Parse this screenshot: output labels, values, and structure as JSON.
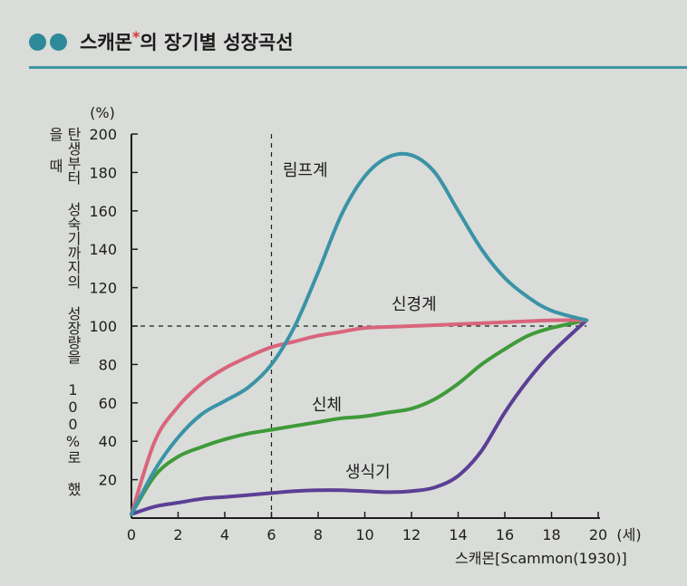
{
  "header": {
    "title": "스캐몬",
    "title_mark": "*",
    "title_rest": "의 장기별 성장곡선"
  },
  "colors": {
    "accent": "#2e8a9a",
    "lymph": "#3a93a6",
    "nerve": "#d9657c",
    "body": "#3f9a3a",
    "repro": "#5b3f95"
  },
  "source": "스캐몬[Scammon(1930)]",
  "chart_data": {
    "type": "line",
    "y_unit": "(%)",
    "ylabel": "탄생부터 성숙기까지의 성장량을 100%로 했을 때",
    "x_unit": "(세)",
    "xlim": [
      0,
      20
    ],
    "ylim": [
      0,
      200
    ],
    "x_ticks": [
      0,
      2,
      4,
      6,
      8,
      10,
      12,
      14,
      16,
      18,
      20
    ],
    "y_ticks": [
      20,
      40,
      60,
      80,
      100,
      120,
      140,
      160,
      180,
      200
    ],
    "reference_lines": {
      "x": 6,
      "y": 100
    },
    "series": [
      {
        "name": "림프계",
        "x": [
          0,
          1,
          2,
          3,
          4,
          5,
          6,
          7,
          8,
          9,
          10,
          11,
          12,
          13,
          14,
          15,
          16,
          17,
          18,
          19.5
        ],
        "values": [
          2,
          25,
          42,
          54,
          61,
          68,
          80,
          100,
          128,
          158,
          178,
          188,
          189,
          180,
          160,
          140,
          125,
          115,
          108,
          103
        ]
      },
      {
        "name": "신경계",
        "x": [
          0,
          1,
          2,
          3,
          4,
          5,
          6,
          7,
          8,
          9,
          10,
          12,
          14,
          16,
          18,
          19.5
        ],
        "values": [
          2,
          40,
          58,
          70,
          78,
          84,
          89,
          92,
          95,
          97,
          99,
          100,
          101,
          102,
          103,
          103
        ]
      },
      {
        "name": "신체",
        "x": [
          0,
          1,
          2,
          3,
          4,
          5,
          6,
          7,
          8,
          9,
          10,
          11,
          12,
          13,
          14,
          15,
          16,
          17,
          18,
          19.5
        ],
        "values": [
          2,
          22,
          32,
          37,
          41,
          44,
          46,
          48,
          50,
          52,
          53,
          55,
          57,
          62,
          70,
          80,
          88,
          95,
          99,
          103
        ]
      },
      {
        "name": "생식기",
        "x": [
          0,
          1,
          2,
          3,
          4,
          5,
          6,
          7,
          8,
          9,
          10,
          11,
          12,
          13,
          14,
          15,
          16,
          17,
          18,
          19.5
        ],
        "values": [
          2,
          6,
          8,
          10,
          11,
          12,
          13,
          14,
          14.5,
          14.5,
          14,
          13.5,
          14,
          16,
          22,
          35,
          55,
          72,
          86,
          103
        ]
      }
    ]
  }
}
